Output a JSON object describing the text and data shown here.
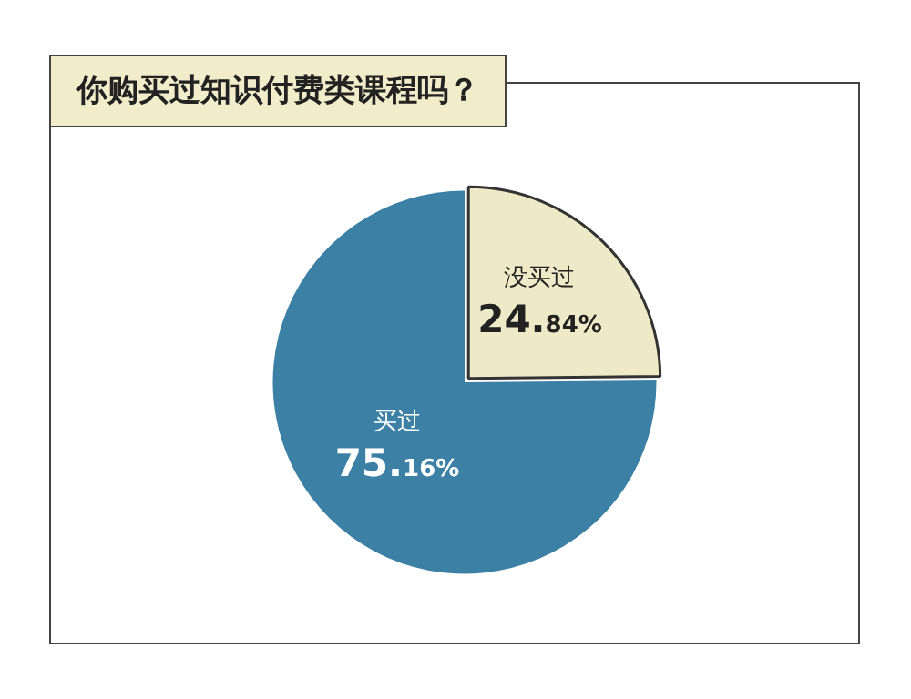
{
  "chart_data": {
    "type": "pie",
    "title": "你购买过知识付费类课程吗？",
    "categories": [
      "没买过",
      "买过"
    ],
    "values": [
      24.84,
      75.16
    ],
    "value_labels": [
      "24.84%",
      "75.16%"
    ],
    "colors": [
      "#eee9c6",
      "#3c80a6"
    ],
    "legend": false
  }
}
